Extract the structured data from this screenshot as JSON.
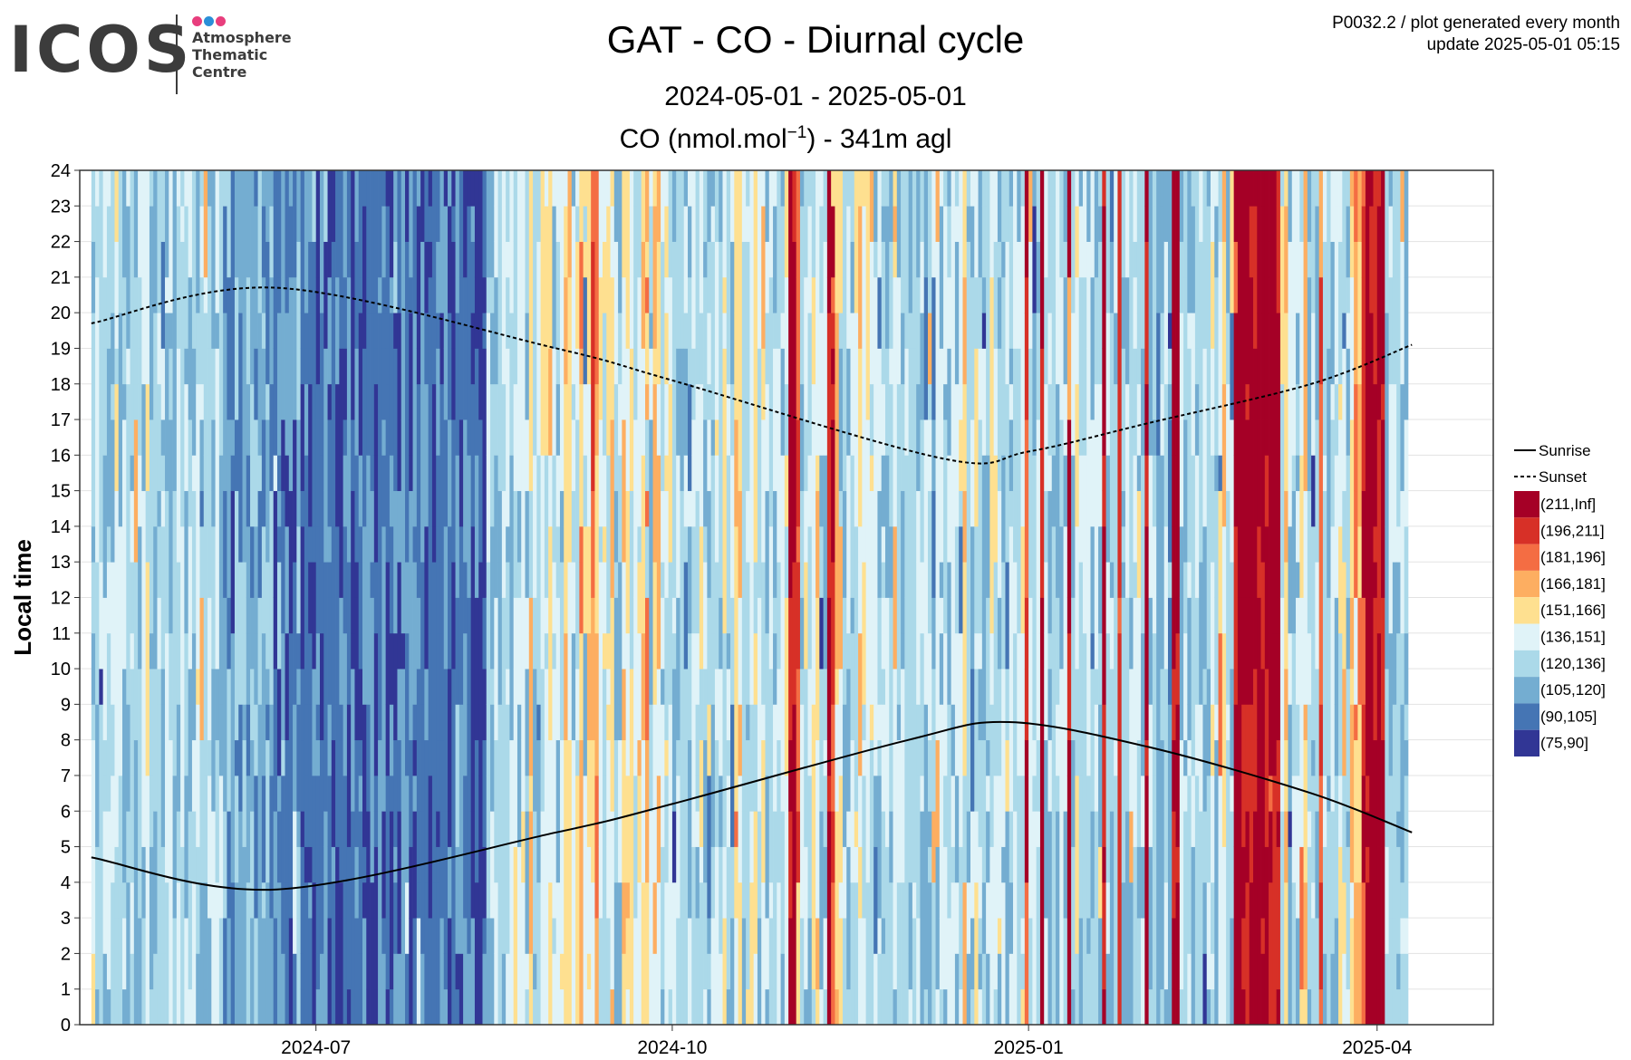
{
  "header": {
    "logo": {
      "wordmark": "ICOS",
      "lines": [
        "Atmosphere",
        "Thematic",
        "Centre"
      ],
      "dot_colors": [
        "#e83e7d",
        "#2a8fd8",
        "#e83e7d"
      ]
    },
    "title": "GAT - CO - Diurnal cycle",
    "subtitle": "2024-05-01 - 2025-05-01",
    "unit_line": {
      "prefix": "CO (nmol.mol",
      "sup": "−1",
      "suffix": ") - 341m agl"
    },
    "info_line1": "P0032.2 / plot generated every month",
    "info_line2": "update  2025-05-01 05:15"
  },
  "chart_data": {
    "type": "heatmap",
    "ylabel": "Local time",
    "xlabel": "",
    "x_range": [
      "2024-05-01",
      "2025-05-01"
    ],
    "data_x_range": [
      "2024-05-04",
      "2025-04-10"
    ],
    "ylim": [
      0,
      24
    ],
    "yticks": [
      0,
      1,
      2,
      3,
      4,
      5,
      6,
      7,
      8,
      9,
      10,
      11,
      12,
      13,
      14,
      15,
      16,
      17,
      18,
      19,
      20,
      21,
      22,
      23,
      24
    ],
    "xticks": [
      {
        "label": "2024-07",
        "date": "2024-07-01"
      },
      {
        "label": "2024-10",
        "date": "2024-10-01"
      },
      {
        "label": "2025-01",
        "date": "2025-01-01"
      },
      {
        "label": "2025-04",
        "date": "2025-04-01"
      }
    ],
    "grid": true,
    "legend_position": "right",
    "legend_lines": [
      {
        "name": "Sunrise",
        "style": "solid"
      },
      {
        "name": "Sunset",
        "style": "dashed"
      }
    ],
    "color_bins": [
      {
        "label": "(211,Inf]",
        "color": "#a50026"
      },
      {
        "label": "(196,211]",
        "color": "#d73027"
      },
      {
        "label": "(181,196]",
        "color": "#f46d43"
      },
      {
        "label": "(166,181]",
        "color": "#fdae61"
      },
      {
        "label": "(151,166]",
        "color": "#fee090"
      },
      {
        "label": "(136,151]",
        "color": "#e0f3f8"
      },
      {
        "label": "(120,136]",
        "color": "#abd9e9"
      },
      {
        "label": "(105,120]",
        "color": "#74add1"
      },
      {
        "label": "(90,105]",
        "color": "#4575b4"
      },
      {
        "label": "(75,90]",
        "color": "#313695"
      }
    ],
    "sunrise": [
      {
        "date": "2024-05-04",
        "hour": 4.7
      },
      {
        "date": "2024-06-21",
        "hour": 3.8
      },
      {
        "date": "2024-09-01",
        "hour": 5.4
      },
      {
        "date": "2024-10-01",
        "hour": 6.2
      },
      {
        "date": "2024-12-01",
        "hour": 8.0
      },
      {
        "date": "2024-12-27",
        "hour": 8.5
      },
      {
        "date": "2025-02-01",
        "hour": 7.8
      },
      {
        "date": "2025-03-15",
        "hour": 6.5
      },
      {
        "date": "2025-04-10",
        "hour": 5.4
      }
    ],
    "sunset": [
      {
        "date": "2024-05-04",
        "hour": 19.7
      },
      {
        "date": "2024-06-21",
        "hour": 20.7
      },
      {
        "date": "2024-09-01",
        "hour": 19.0
      },
      {
        "date": "2024-10-01",
        "hour": 18.1
      },
      {
        "date": "2024-12-10",
        "hour": 15.9
      },
      {
        "date": "2025-01-01",
        "hour": 16.1
      },
      {
        "date": "2025-02-01",
        "hour": 16.9
      },
      {
        "date": "2025-03-15",
        "hour": 18.0
      },
      {
        "date": "2025-04-10",
        "hour": 19.1
      }
    ],
    "daily_mean_bin": [
      6,
      6,
      6,
      6,
      6,
      6,
      5,
      6,
      6,
      6,
      6,
      6,
      6,
      6,
      5,
      6,
      6,
      6,
      6,
      6,
      6,
      6,
      6,
      6,
      6,
      6,
      6,
      6,
      6,
      6,
      6,
      6,
      6,
      6,
      7,
      7,
      7,
      7,
      7,
      7,
      7,
      7,
      7,
      7,
      7,
      7,
      7,
      8,
      8,
      8,
      8,
      8,
      8,
      7,
      8,
      8,
      8,
      8,
      8,
      8,
      8,
      8,
      8,
      8,
      8,
      8,
      8,
      8,
      8,
      8,
      8,
      8,
      8,
      8,
      8,
      8,
      8,
      8,
      8,
      8,
      8,
      8,
      8,
      8,
      8,
      8,
      8,
      8,
      8,
      8,
      8,
      8,
      8,
      8,
      8,
      8,
      8,
      8,
      8,
      8,
      8,
      8,
      6,
      7,
      6,
      6,
      6,
      6,
      6,
      5,
      6,
      5,
      6,
      4,
      6,
      6,
      5,
      5,
      4,
      6,
      6,
      5,
      4,
      4,
      6,
      5,
      3,
      5,
      4,
      2,
      3,
      5,
      5,
      5,
      4,
      6,
      6,
      4,
      4,
      5,
      5,
      5,
      4,
      3,
      6,
      4,
      4,
      6,
      5,
      5,
      6,
      6,
      6,
      6,
      6,
      6,
      6,
      5,
      6,
      6,
      6,
      5,
      6,
      5,
      6,
      6,
      4,
      4,
      6,
      6,
      5,
      5,
      6,
      5,
      6,
      6,
      6,
      6,
      6,
      5,
      0,
      0,
      1,
      6,
      6,
      6,
      5,
      4,
      6,
      6,
      0,
      1,
      4,
      5,
      6,
      6,
      6,
      5,
      4,
      5,
      5,
      5,
      6,
      6,
      6,
      6,
      6,
      5,
      6,
      6,
      6,
      6,
      6,
      6,
      6,
      6,
      6,
      6,
      6,
      6,
      6,
      6,
      6,
      6,
      5,
      4,
      6,
      6,
      5,
      6,
      6,
      6,
      5,
      5,
      6,
      6,
      6,
      6,
      6,
      6,
      5,
      1,
      6,
      6,
      6,
      0,
      6,
      6,
      6,
      6,
      6,
      6,
      0,
      6,
      5,
      6,
      6,
      6,
      6,
      6,
      6,
      0,
      6,
      6,
      6,
      1,
      6,
      6,
      6,
      6,
      6,
      6,
      0,
      6,
      6,
      7,
      6,
      6,
      7,
      0,
      0,
      6,
      6,
      6,
      6,
      6,
      6,
      6,
      6,
      5,
      6,
      5,
      4,
      6,
      6,
      0,
      0,
      0,
      0,
      0,
      0,
      0,
      0,
      0,
      0,
      0,
      0,
      5,
      4,
      6,
      6,
      6,
      5,
      4,
      6,
      6,
      6,
      2,
      6,
      6,
      6,
      6,
      5,
      5,
      6,
      4,
      3,
      3,
      1,
      0,
      0,
      0,
      0,
      0,
      6,
      6,
      6,
      6,
      6,
      6
    ]
  }
}
